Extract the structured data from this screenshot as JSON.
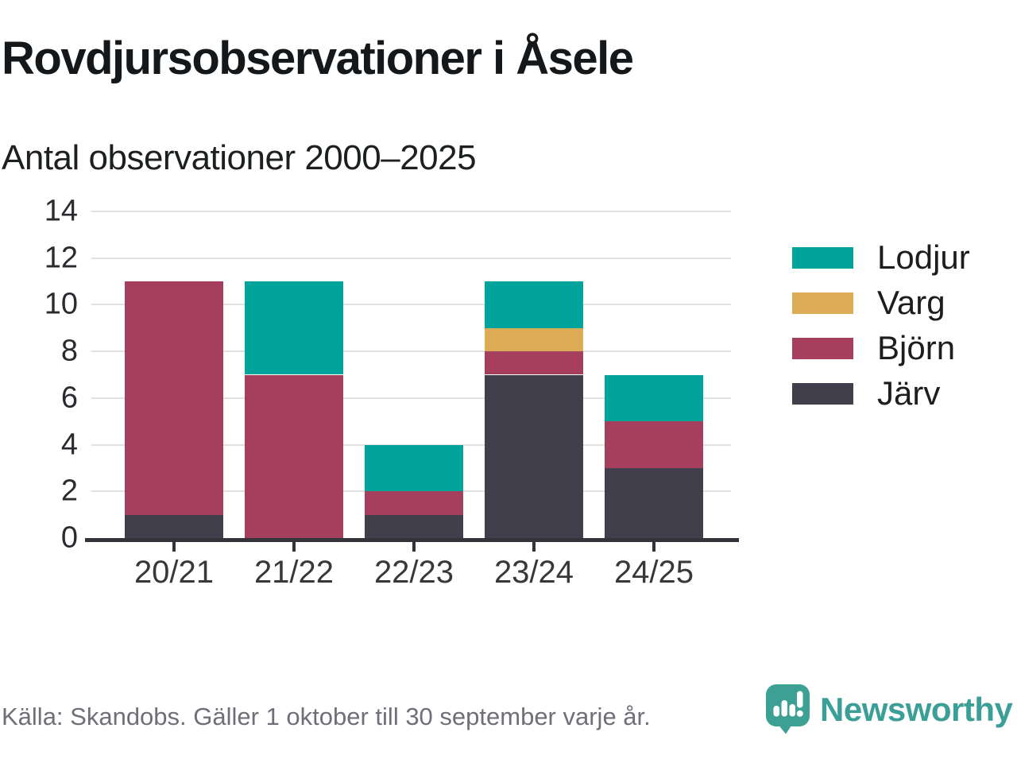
{
  "header": {
    "title": "Rovdjursobservationer i Åsele",
    "subtitle": "Antal observationer 2000–2025"
  },
  "chart_data": {
    "type": "bar",
    "stacked": true,
    "title": "Rovdjursobservationer i Åsele",
    "subtitle": "Antal observationer 2000–2025",
    "categories": [
      "20/21",
      "21/22",
      "22/23",
      "23/24",
      "24/25"
    ],
    "series": [
      {
        "name": "Järv",
        "color": "#423f4d",
        "values": [
          1,
          0,
          1,
          7,
          3
        ]
      },
      {
        "name": "Björn",
        "color": "#a63f5e",
        "values": [
          10,
          7,
          1,
          1,
          2
        ]
      },
      {
        "name": "Varg",
        "color": "#dbac55",
        "values": [
          0,
          0,
          0,
          1,
          0
        ]
      },
      {
        "name": "Lodjur",
        "color": "#00a49a",
        "values": [
          0,
          4,
          2,
          2,
          2
        ]
      }
    ],
    "totals": [
      11,
      11,
      4,
      11,
      7
    ],
    "legend_order": [
      "Lodjur",
      "Varg",
      "Björn",
      "Järv"
    ],
    "legend_position": "right",
    "xlabel": "",
    "ylabel": "",
    "ylim": [
      0,
      14
    ],
    "yticks": [
      0,
      2,
      4,
      6,
      8,
      10,
      12,
      14
    ],
    "grid": true
  },
  "footer": {
    "source": "Källa: Skandobs. Gäller 1 oktober till 30 september varje år.",
    "brand": "Newsworthy"
  },
  "colors": {
    "grid": "#e1e1e2",
    "axis": "#33343a",
    "brand_teal": "#3c9f97",
    "logo_bubble": "#3da095"
  }
}
